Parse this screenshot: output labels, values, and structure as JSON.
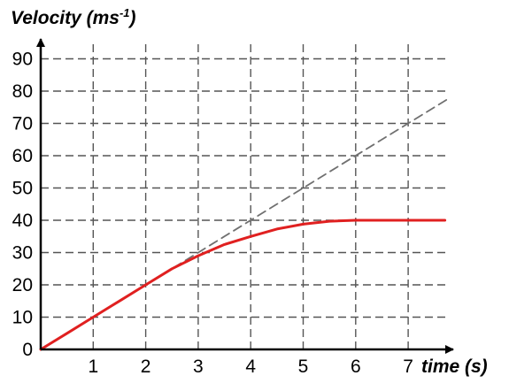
{
  "chart_data": {
    "type": "line",
    "ylabel_main": "Velocity (ms",
    "ylabel_exp": "-1",
    "ylabel_close": ")",
    "xlabel": "time (s)",
    "xlim": [
      0,
      7.8
    ],
    "ylim": [
      0,
      95
    ],
    "x_ticks": [
      1,
      2,
      3,
      4,
      5,
      6,
      7
    ],
    "y_ticks": [
      0,
      10,
      20,
      30,
      40,
      50,
      60,
      70,
      80,
      90
    ],
    "grid": true,
    "series": [
      {
        "color": "#e02020",
        "style": "solid",
        "x": [
          0,
          0.5,
          1,
          1.5,
          2,
          2.5,
          3,
          3.5,
          4,
          4.5,
          5,
          5.5,
          6,
          6.5,
          7,
          7.7
        ],
        "y": [
          0,
          5,
          10,
          15,
          20,
          25,
          29,
          32.5,
          35,
          37.3,
          38.8,
          39.7,
          40,
          40,
          40,
          40
        ]
      },
      {
        "color": "#707070",
        "style": "dashed",
        "x": [
          0,
          7.8
        ],
        "y": [
          0,
          78
        ]
      }
    ]
  }
}
